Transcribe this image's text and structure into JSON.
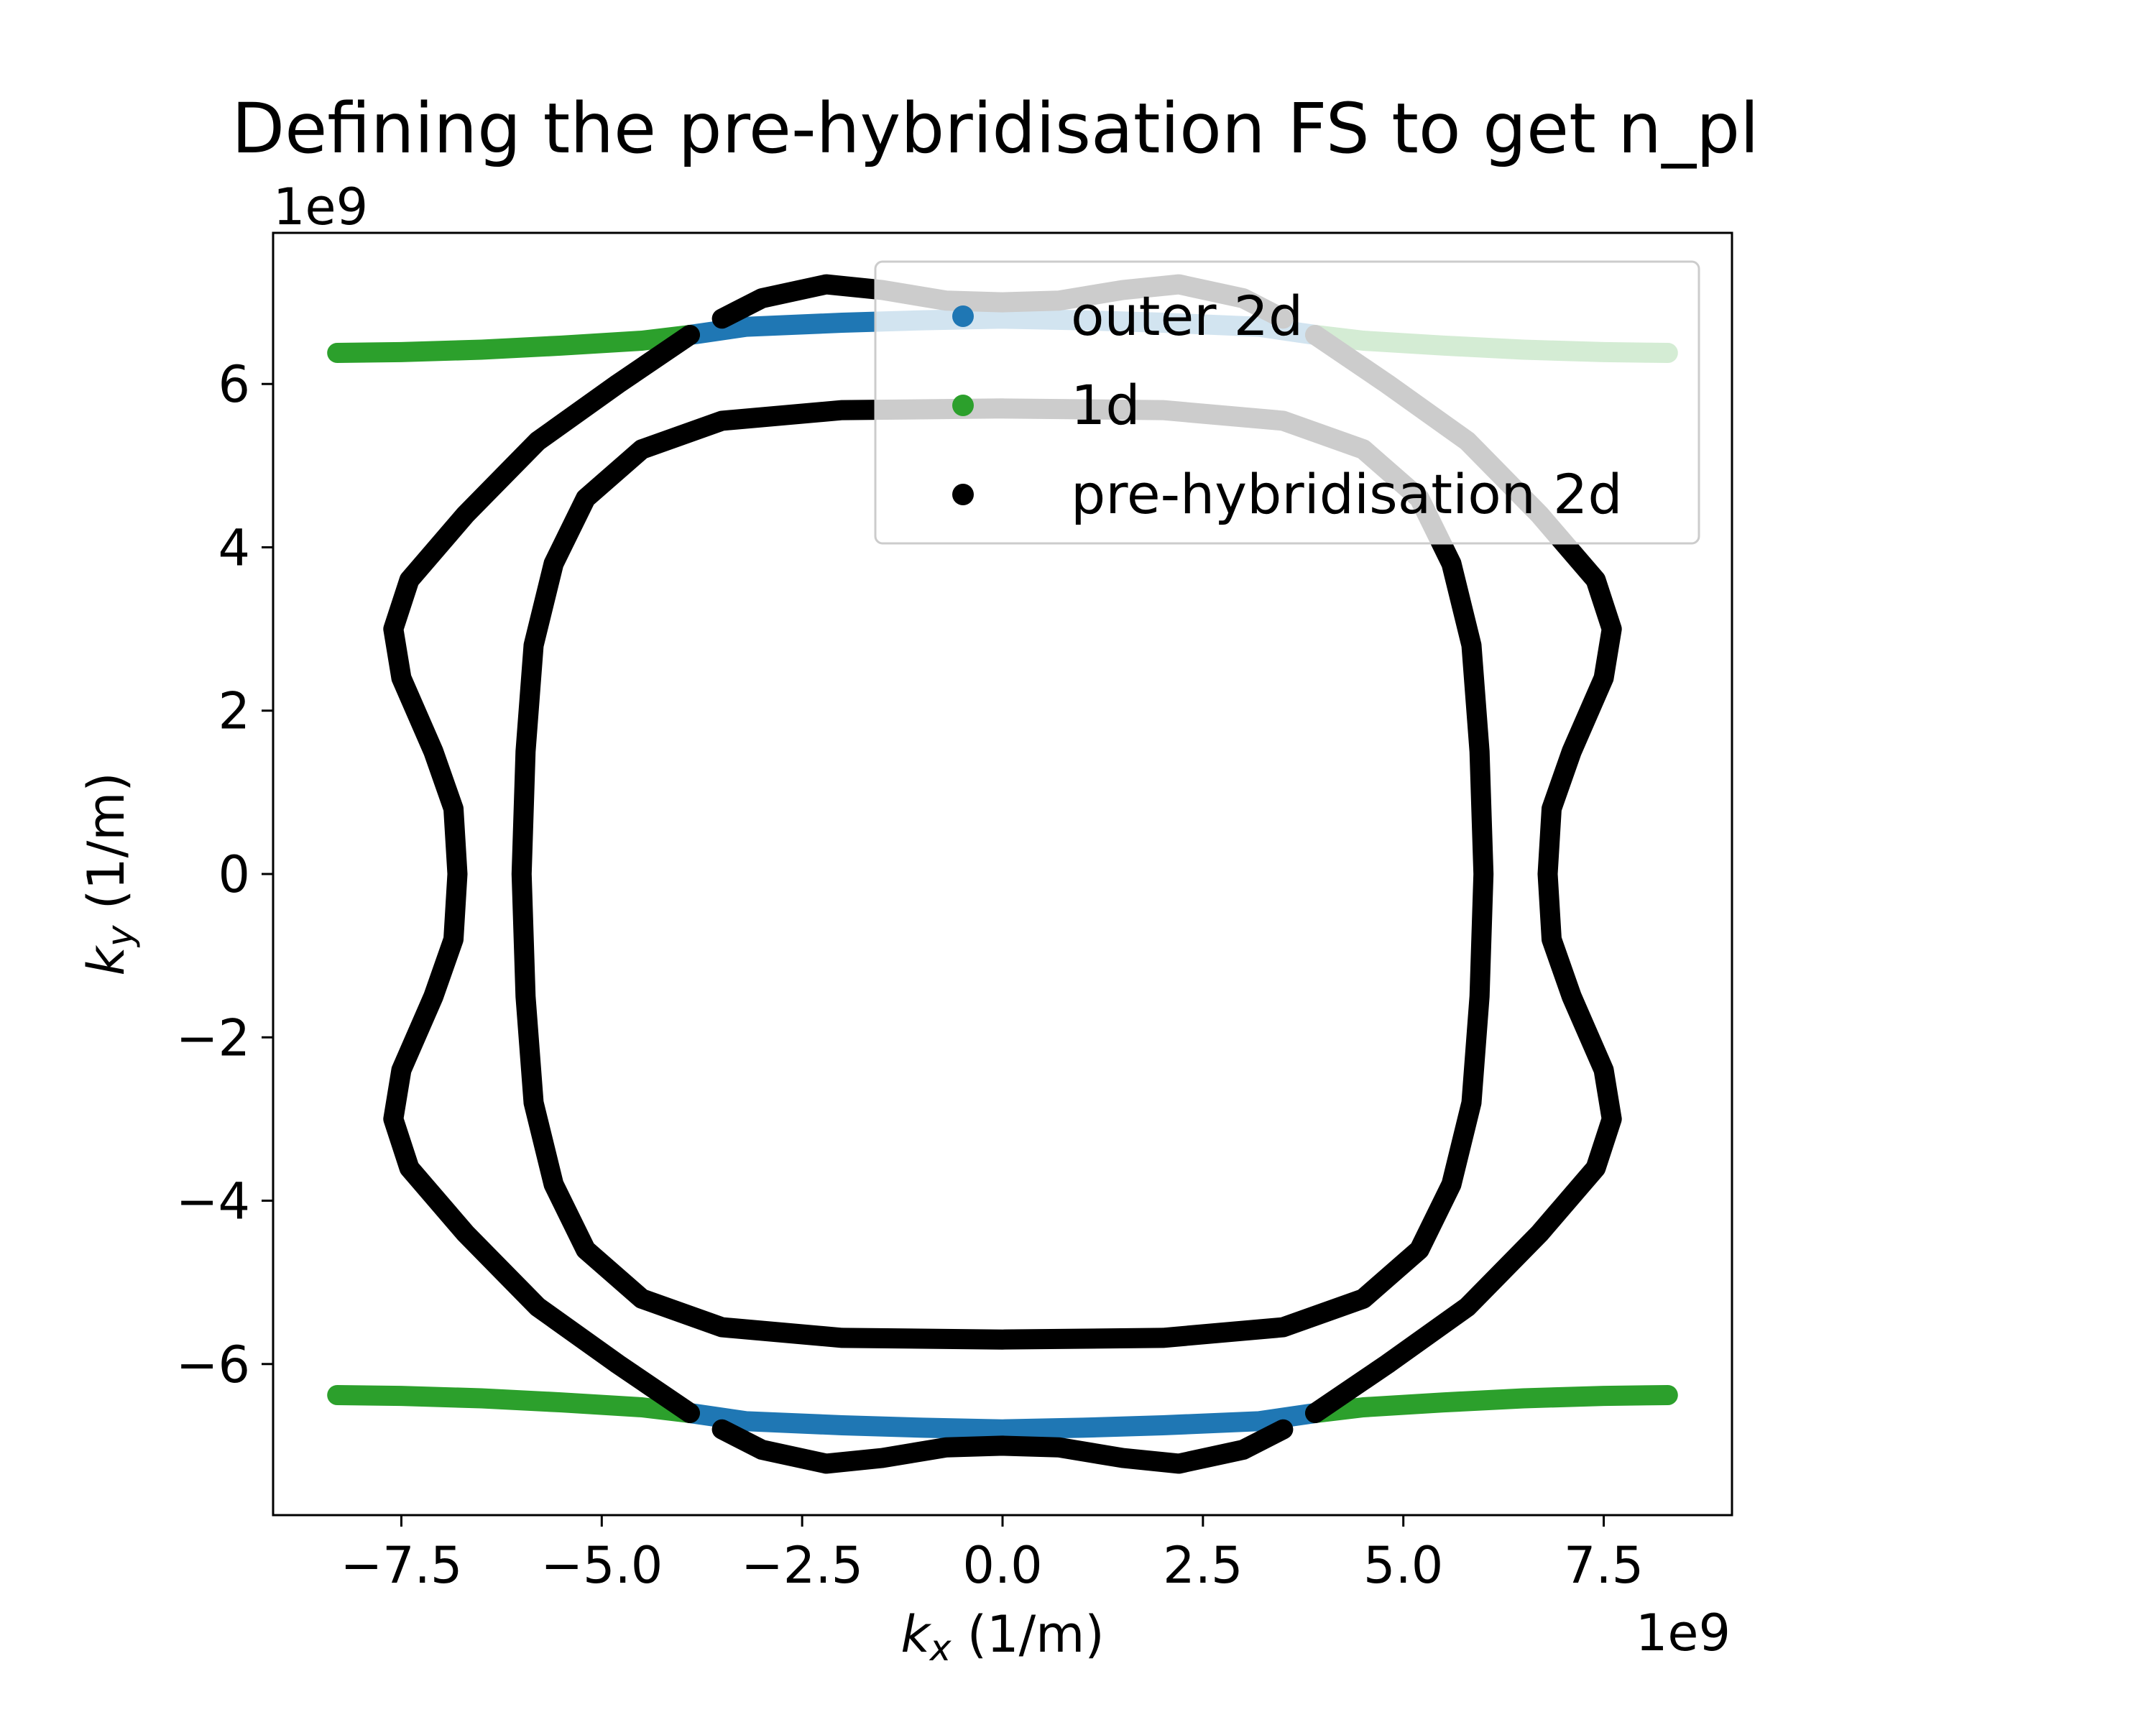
{
  "chart_data": {
    "type": "scatter",
    "title": "Defining the pre-hybridisation FS to get n_pl",
    "xlabel_base": "k",
    "xlabel_sub": "x",
    "xlabel_unit": " (1/m)",
    "ylabel_base": "k",
    "ylabel_sub": "y",
    "ylabel_unit": " (1/m)",
    "x_offset_text": "1e9",
    "y_offset_text": "1e9",
    "xlim": [
      -9.1,
      9.1
    ],
    "ylim": [
      -7.85,
      7.85
    ],
    "x_ticks": [
      {
        "value": -7.5,
        "label": "−7.5"
      },
      {
        "value": -5.0,
        "label": "−5.0"
      },
      {
        "value": -2.5,
        "label": "−2.5"
      },
      {
        "value": 0.0,
        "label": "0.0"
      },
      {
        "value": 2.5,
        "label": "2.5"
      },
      {
        "value": 5.0,
        "label": "5.0"
      },
      {
        "value": 7.5,
        "label": "7.5"
      }
    ],
    "y_ticks": [
      {
        "value": -6,
        "label": "−6"
      },
      {
        "value": -4,
        "label": "−4"
      },
      {
        "value": -2,
        "label": "−2"
      },
      {
        "value": 0,
        "label": "0"
      },
      {
        "value": 2,
        "label": "2"
      },
      {
        "value": 4,
        "label": "4"
      },
      {
        "value": 6,
        "label": "6"
      }
    ],
    "grid": false,
    "legend_position": "top-right",
    "series": [
      {
        "name": "outer 2d",
        "color": "#1f77b4",
        "segments": [
          [
            [
              -3.9,
              6.6
            ],
            [
              -3.2,
              6.7
            ],
            [
              -2.0,
              6.75
            ],
            [
              -1.0,
              6.78
            ],
            [
              0.0,
              6.8
            ],
            [
              1.0,
              6.78
            ],
            [
              2.0,
              6.75
            ],
            [
              3.2,
              6.7
            ],
            [
              3.9,
              6.6
            ]
          ],
          [
            [
              -3.9,
              -6.6
            ],
            [
              -3.2,
              -6.7
            ],
            [
              -2.0,
              -6.75
            ],
            [
              -1.0,
              -6.78
            ],
            [
              0.0,
              -6.8
            ],
            [
              1.0,
              -6.78
            ],
            [
              2.0,
              -6.75
            ],
            [
              3.2,
              -6.7
            ],
            [
              3.9,
              -6.6
            ]
          ]
        ]
      },
      {
        "name": "1d",
        "color": "#2ca02c",
        "segments": [
          [
            [
              -8.3,
              6.38
            ],
            [
              -7.5,
              6.39
            ],
            [
              -6.5,
              6.42
            ],
            [
              -5.5,
              6.47
            ],
            [
              -4.5,
              6.53
            ],
            [
              -3.9,
              6.6
            ]
          ],
          [
            [
              3.9,
              6.6
            ],
            [
              4.5,
              6.53
            ],
            [
              5.5,
              6.47
            ],
            [
              6.5,
              6.42
            ],
            [
              7.5,
              6.39
            ],
            [
              8.3,
              6.38
            ]
          ],
          [
            [
              -8.3,
              -6.38
            ],
            [
              -7.5,
              -6.39
            ],
            [
              -6.5,
              -6.42
            ],
            [
              -5.5,
              -6.47
            ],
            [
              -4.5,
              -6.53
            ],
            [
              -3.9,
              -6.6
            ]
          ],
          [
            [
              3.9,
              -6.6
            ],
            [
              4.5,
              -6.53
            ],
            [
              5.5,
              -6.47
            ],
            [
              6.5,
              -6.42
            ],
            [
              7.5,
              -6.39
            ],
            [
              8.3,
              -6.38
            ]
          ]
        ]
      },
      {
        "name": "pre-hybridisation 2d",
        "color": "#000000",
        "segments": [
          [
            [
              -3.5,
              6.8
            ],
            [
              -3.0,
              7.05
            ],
            [
              -2.2,
              7.22
            ],
            [
              -1.5,
              7.15
            ],
            [
              -0.7,
              7.02
            ],
            [
              0.0,
              7.0
            ],
            [
              0.7,
              7.02
            ],
            [
              1.5,
              7.15
            ],
            [
              2.2,
              7.22
            ],
            [
              3.0,
              7.05
            ],
            [
              3.5,
              6.8
            ]
          ],
          [
            [
              -3.5,
              -6.8
            ],
            [
              -3.0,
              -7.05
            ],
            [
              -2.2,
              -7.22
            ],
            [
              -1.5,
              -7.15
            ],
            [
              -0.7,
              -7.02
            ],
            [
              0.0,
              -7.0
            ],
            [
              0.7,
              -7.02
            ],
            [
              1.5,
              -7.15
            ],
            [
              2.2,
              -7.22
            ],
            [
              3.0,
              -7.05
            ],
            [
              3.5,
              -6.8
            ]
          ],
          [
            [
              -3.9,
              6.6
            ],
            [
              -4.8,
              6.0
            ],
            [
              -5.8,
              5.3
            ],
            [
              -6.7,
              4.4
            ],
            [
              -7.4,
              3.6
            ],
            [
              -7.6,
              3.0
            ],
            [
              -7.5,
              2.4
            ],
            [
              -7.1,
              1.5
            ],
            [
              -6.85,
              0.8
            ],
            [
              -6.8,
              0.0
            ],
            [
              -6.85,
              -0.8
            ],
            [
              -7.1,
              -1.5
            ],
            [
              -7.5,
              -2.4
            ],
            [
              -7.6,
              -3.0
            ],
            [
              -7.4,
              -3.6
            ],
            [
              -6.7,
              -4.4
            ],
            [
              -5.8,
              -5.3
            ],
            [
              -4.8,
              -6.0
            ],
            [
              -3.9,
              -6.6
            ]
          ],
          [
            [
              3.9,
              6.6
            ],
            [
              4.8,
              6.0
            ],
            [
              5.8,
              5.3
            ],
            [
              6.7,
              4.4
            ],
            [
              7.4,
              3.6
            ],
            [
              7.6,
              3.0
            ],
            [
              7.5,
              2.4
            ],
            [
              7.1,
              1.5
            ],
            [
              6.85,
              0.8
            ],
            [
              6.8,
              0.0
            ],
            [
              6.85,
              -0.8
            ],
            [
              7.1,
              -1.5
            ],
            [
              7.5,
              -2.4
            ],
            [
              7.6,
              -3.0
            ],
            [
              7.4,
              -3.6
            ],
            [
              6.7,
              -4.4
            ],
            [
              5.8,
              -5.3
            ],
            [
              4.8,
              -6.0
            ],
            [
              3.9,
              -6.6
            ]
          ],
          [
            [
              0.0,
              5.7
            ],
            [
              -2.0,
              5.68
            ],
            [
              -3.5,
              5.55
            ],
            [
              -4.5,
              5.2
            ],
            [
              -5.2,
              4.6
            ],
            [
              -5.6,
              3.8
            ],
            [
              -5.85,
              2.8
            ],
            [
              -5.95,
              1.5
            ],
            [
              -6.0,
              0.0
            ],
            [
              -5.95,
              -1.5
            ],
            [
              -5.85,
              -2.8
            ],
            [
              -5.6,
              -3.8
            ],
            [
              -5.2,
              -4.6
            ],
            [
              -4.5,
              -5.2
            ],
            [
              -3.5,
              -5.55
            ],
            [
              -2.0,
              -5.68
            ],
            [
              0.0,
              -5.7
            ],
            [
              2.0,
              -5.68
            ],
            [
              3.5,
              -5.55
            ],
            [
              4.5,
              -5.2
            ],
            [
              5.2,
              -4.6
            ],
            [
              5.6,
              -3.8
            ],
            [
              5.85,
              -2.8
            ],
            [
              5.95,
              -1.5
            ],
            [
              6.0,
              0.0
            ],
            [
              5.95,
              1.5
            ],
            [
              5.85,
              2.8
            ],
            [
              5.6,
              3.8
            ],
            [
              5.2,
              4.6
            ],
            [
              4.5,
              5.2
            ],
            [
              3.5,
              5.55
            ],
            [
              2.0,
              5.68
            ],
            [
              0.0,
              5.7
            ]
          ]
        ]
      }
    ]
  }
}
